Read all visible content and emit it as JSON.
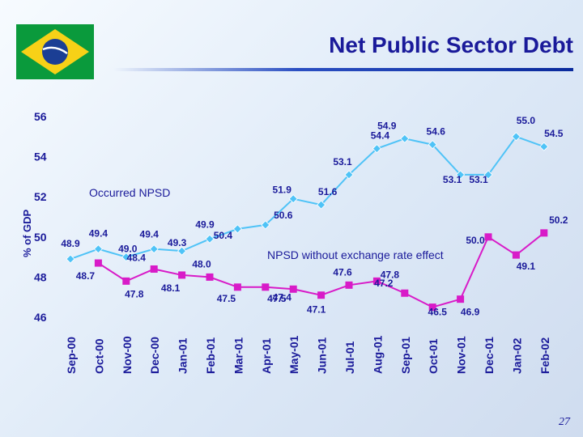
{
  "page": {
    "title": "Net Public Sector Debt",
    "page_number": "27"
  },
  "colors": {
    "accent": "#1a1a9a",
    "series_a": "#4fc3f7",
    "series_b": "#d81bc8"
  },
  "chart_data": {
    "type": "line",
    "ylabel": "% of GDP",
    "ylim": [
      46,
      56
    ],
    "yticks": [
      "56",
      "54",
      "52",
      "50",
      "48",
      "46"
    ],
    "categories": [
      "Sep-00",
      "Oct-00",
      "Nov-00",
      "Dec-00",
      "Jan-01",
      "Feb-01",
      "Mar-01",
      "Apr-01",
      "May-01",
      "Jun-01",
      "Jul-01",
      "Aug-01",
      "Sep-01",
      "Oct-01",
      "Nov-01",
      "Dec-01",
      "Jan-02",
      "Feb-02"
    ],
    "series": [
      {
        "name": "Occurred NPSD",
        "values": [
          48.9,
          49.4,
          49.0,
          49.4,
          49.3,
          49.9,
          50.4,
          50.6,
          51.9,
          51.6,
          53.1,
          54.4,
          54.9,
          54.6,
          53.1,
          53.1,
          55.0,
          54.5
        ]
      },
      {
        "name": "NPSD without exchange rate effect",
        "values": [
          null,
          48.7,
          47.8,
          48.4,
          48.1,
          48.0,
          47.5,
          47.5,
          47.4,
          47.1,
          47.6,
          47.8,
          47.2,
          46.5,
          46.9,
          50.0,
          49.1,
          50.2
        ]
      }
    ],
    "labels": [
      [
        "48.9",
        "49.4",
        "49.0",
        "49.4",
        "49.3",
        "49.9",
        "50.4",
        "50.6",
        "51.9",
        "51.6",
        "53.1",
        "54.4",
        "54.9",
        "54.6",
        "53.1",
        "53.1",
        "55.0",
        "54.5"
      ],
      [
        null,
        "48.7",
        "47.8",
        "48.4",
        "48.1",
        "48.0",
        "47.5",
        "47.5",
        "47.4",
        "47.1",
        "47.6",
        "47.8",
        "47.2",
        "46.5",
        "46.9",
        "50.0",
        "49.1",
        "50.2"
      ]
    ]
  }
}
